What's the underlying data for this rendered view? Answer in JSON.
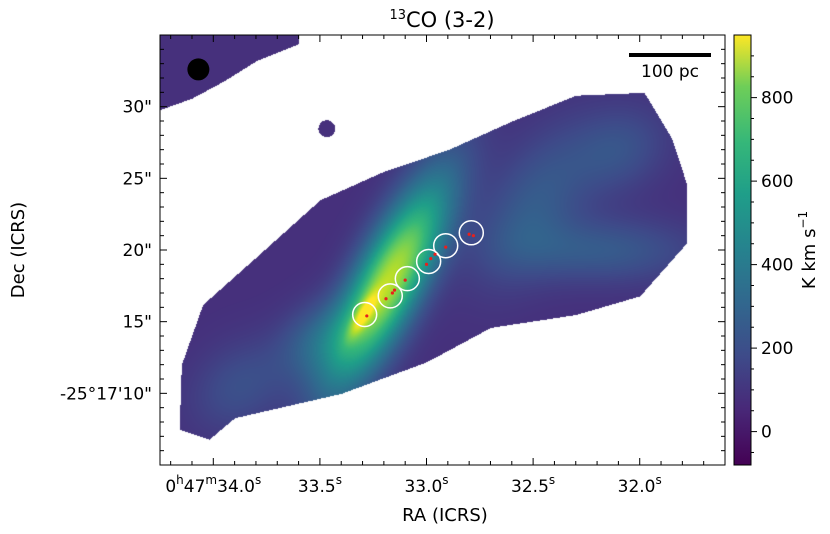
{
  "chart_data": {
    "type": "heatmap",
    "title": "13CO (3-2)",
    "title_parts": {
      "sup": "13",
      "rest": "CO (3-2)"
    },
    "xlabel": "RA (ICRS)",
    "ylabel": "Dec (ICRS)",
    "x_ticks": [
      {
        "value": 34.0,
        "label_parts": [
          "0",
          "h",
          "47",
          "m",
          "34.0",
          "s"
        ]
      },
      {
        "value": 33.5,
        "label_parts": [
          "33.5",
          "s"
        ]
      },
      {
        "value": 33.0,
        "label_parts": [
          "33.0",
          "s"
        ]
      },
      {
        "value": 32.5,
        "label_parts": [
          "32.5",
          "s"
        ]
      },
      {
        "value": 32.0,
        "label_parts": [
          "32.0",
          "s"
        ]
      }
    ],
    "y_ticks": [
      {
        "value": 10,
        "label": "-25°17'10\""
      },
      {
        "value": 15,
        "label": "15\""
      },
      {
        "value": 20,
        "label": "20\""
      },
      {
        "value": 25,
        "label": "25\""
      },
      {
        "value": 30,
        "label": "30\""
      }
    ],
    "xlim": [
      34.25,
      31.6
    ],
    "ylim": [
      35,
      5
    ],
    "colorbar": {
      "label": "K km s",
      "label_sup": "−1",
      "colormap": "viridis",
      "range": [
        -80,
        950
      ],
      "ticks": [
        0,
        200,
        400,
        600,
        800
      ]
    },
    "scale_bar": {
      "label": "100 pc"
    },
    "apertures": [
      {
        "ra": 33.29,
        "dec": 15.5
      },
      {
        "ra": 33.17,
        "dec": 16.8
      },
      {
        "ra": 33.09,
        "dec": 18.0
      },
      {
        "ra": 32.99,
        "dec": 19.2
      },
      {
        "ra": 32.91,
        "dec": 20.3
      },
      {
        "ra": 32.79,
        "dec": 21.2
      }
    ],
    "sources": [
      {
        "ra": 33.28,
        "dec": 15.4
      },
      {
        "ra": 33.19,
        "dec": 16.6
      },
      {
        "ra": 33.16,
        "dec": 17.0
      },
      {
        "ra": 33.15,
        "dec": 17.2
      },
      {
        "ra": 33.1,
        "dec": 17.9
      },
      {
        "ra": 33.0,
        "dec": 19.0
      },
      {
        "ra": 32.98,
        "dec": 19.4
      },
      {
        "ra": 32.96,
        "dec": 19.7
      },
      {
        "ra": 32.91,
        "dec": 20.2
      },
      {
        "ra": 32.8,
        "dec": 21.1
      },
      {
        "ra": 32.78,
        "dec": 21.0
      }
    ],
    "beam": {
      "ra": 34.07,
      "dec": 32.6
    },
    "emission_components": [
      {
        "ra": 33.18,
        "dec": 17.8,
        "sx": 1.6,
        "sy": 5.5,
        "angle": -63,
        "peak": 780
      },
      {
        "ra": 33.3,
        "dec": 15.5,
        "sx": 0.35,
        "sy": 1.2,
        "angle": -60,
        "peak": 300
      },
      {
        "ra": 33.52,
        "dec": 13.8,
        "sx": 1.6,
        "sy": 2.2,
        "angle": -45,
        "peak": 160
      },
      {
        "ra": 33.88,
        "dec": 10.5,
        "sx": 2.0,
        "sy": 2.6,
        "angle": -40,
        "peak": 110
      },
      {
        "ra": 32.5,
        "dec": 23.2,
        "sx": 2.2,
        "sy": 4.0,
        "angle": -60,
        "peak": 150
      },
      {
        "ra": 32.18,
        "dec": 20.0,
        "sx": 1.6,
        "sy": 4.5,
        "angle": 0,
        "peak": 150
      },
      {
        "ra": 32.1,
        "dec": 27.0,
        "sx": 2.0,
        "sy": 2.5,
        "angle": -30,
        "peak": 120
      }
    ]
  }
}
